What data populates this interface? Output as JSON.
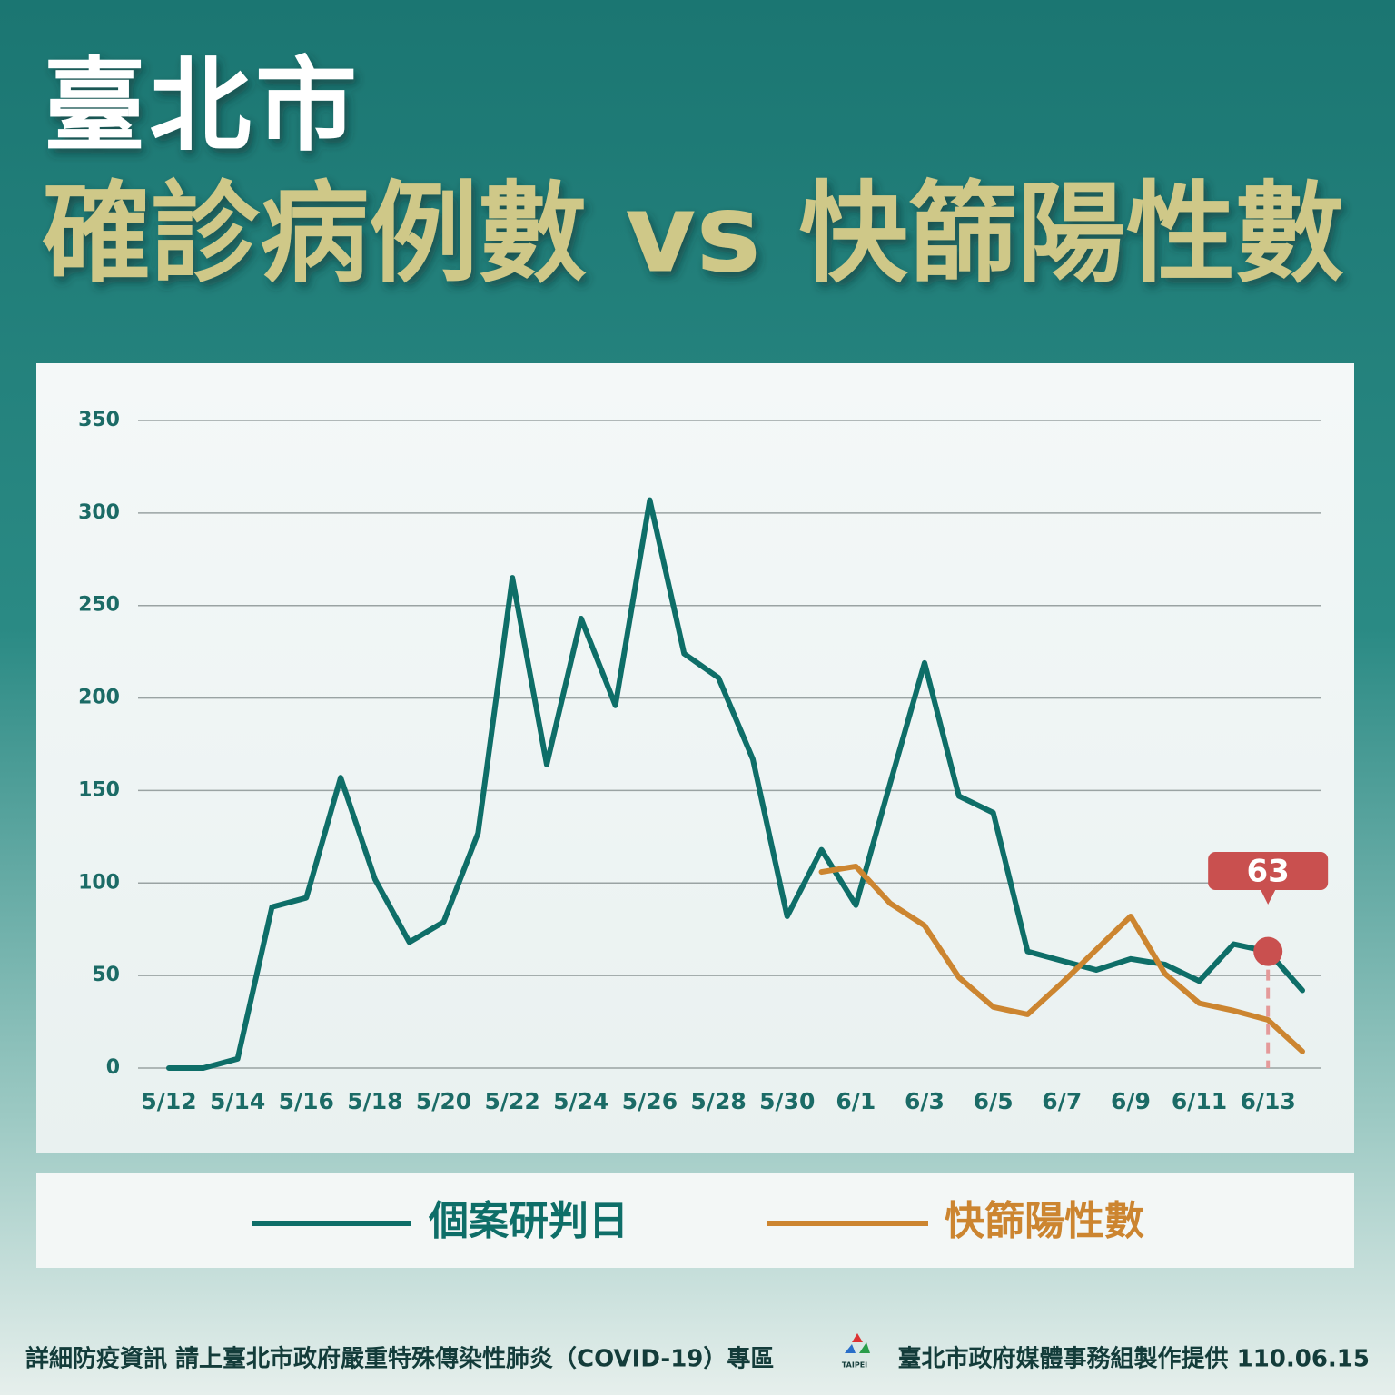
{
  "chart_data": {
    "type": "line",
    "title": "臺北市",
    "subtitle": "確診病例數 vs 快篩陽性數",
    "categories": [
      "5/12",
      null,
      "5/14",
      null,
      "5/16",
      null,
      "5/18",
      null,
      "5/20",
      null,
      "5/22",
      null,
      "5/24",
      null,
      "5/26",
      null,
      "5/28",
      null,
      "5/30",
      null,
      "6/1",
      null,
      "6/3",
      null,
      "6/5",
      null,
      "6/7",
      null,
      "6/9",
      null,
      "6/11",
      null,
      "6/13",
      null
    ],
    "series": [
      {
        "name": "個案研判日",
        "color": "#0e6e68",
        "values": [
          0,
          0,
          5,
          87,
          92,
          157,
          102,
          68,
          79,
          127,
          265,
          164,
          243,
          196,
          307,
          224,
          211,
          167,
          82,
          118,
          88,
          154,
          219,
          147,
          138,
          63,
          58,
          53,
          59,
          56,
          47,
          67,
          63,
          42
        ]
      },
      {
        "name": "快篩陽性數",
        "color": "#cc8530",
        "values": [
          null,
          null,
          null,
          null,
          null,
          null,
          null,
          null,
          null,
          null,
          null,
          null,
          null,
          null,
          null,
          null,
          null,
          null,
          null,
          106,
          109,
          89,
          77,
          49,
          33,
          29,
          46,
          64,
          82,
          51,
          35,
          31,
          26,
          9
        ]
      }
    ],
    "highlight": {
      "series": 0,
      "index": 32,
      "color": "#c9504f"
    },
    "ylim": [
      0,
      350
    ],
    "yticks": [
      0,
      50,
      100,
      150,
      200,
      250,
      300,
      350
    ],
    "grid": true,
    "legend": "bottom"
  },
  "footer": {
    "left": "詳細防疫資訊 請上臺北市政府嚴重特殊傳染性肺炎（COVID-19）專區",
    "logo": "TAIPEI",
    "right": "臺北市政府媒體事務組製作提供 110.06.15"
  }
}
